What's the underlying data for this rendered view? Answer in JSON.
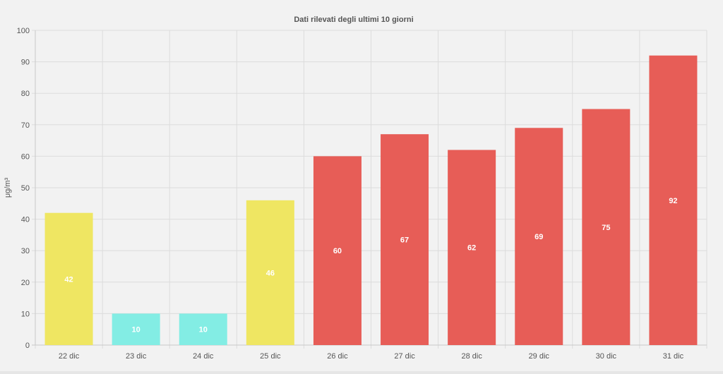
{
  "chart_data": {
    "type": "bar",
    "title": "Dati rilevati degli ultimi 10 giorni",
    "xlabel": "",
    "ylabel": "μg/m³",
    "categories": [
      "22 dic",
      "23 dic",
      "24 dic",
      "25 dic",
      "26 dic",
      "27 dic",
      "28 dic",
      "29 dic",
      "30 dic",
      "31 dic"
    ],
    "values": [
      42,
      10,
      10,
      46,
      60,
      67,
      62,
      69,
      75,
      92
    ],
    "data_labels": [
      "42",
      "10",
      "10",
      "46",
      "60",
      "67",
      "62",
      "69",
      "75",
      "92"
    ],
    "bar_colors": [
      "#efe662",
      "#83ede4",
      "#83ede4",
      "#efe662",
      "#e75d57",
      "#e75d57",
      "#e75d57",
      "#e75d57",
      "#e75d57",
      "#e75d57"
    ],
    "ylim": [
      0,
      100
    ],
    "yticks": [
      0,
      10,
      20,
      30,
      40,
      50,
      60,
      70,
      80,
      90,
      100
    ],
    "grid": true,
    "legend": "none"
  }
}
